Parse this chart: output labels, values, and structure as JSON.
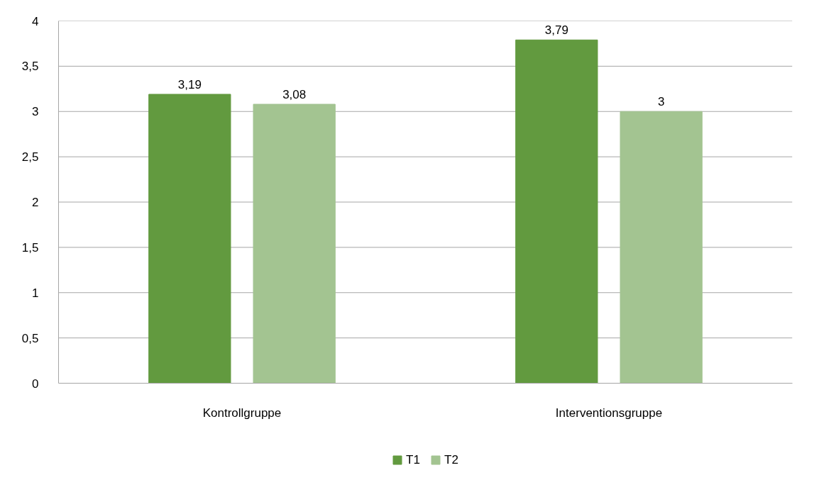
{
  "chart_data": {
    "type": "bar",
    "categories": [
      "Kontrollgruppe",
      "Interventionsgruppe"
    ],
    "series": [
      {
        "name": "T1",
        "color": "#629a3f",
        "values": [
          3.19,
          3.79
        ],
        "value_labels": [
          "3,19",
          "3,79"
        ]
      },
      {
        "name": "T2",
        "color": "#a3c491",
        "values": [
          3.08,
          3.0
        ],
        "value_labels": [
          "3,08",
          "3"
        ]
      }
    ],
    "ylim": [
      0,
      4
    ],
    "yticks": [
      0,
      {
        "value": 0.5,
        "label": "0,5"
      },
      1,
      {
        "value": 1.5,
        "label": "1,5"
      },
      2,
      {
        "value": 2.5,
        "label": "2,5"
      },
      3,
      {
        "value": 3.5,
        "label": "3,5"
      },
      4
    ],
    "grid": "y",
    "legend": "bottom"
  }
}
